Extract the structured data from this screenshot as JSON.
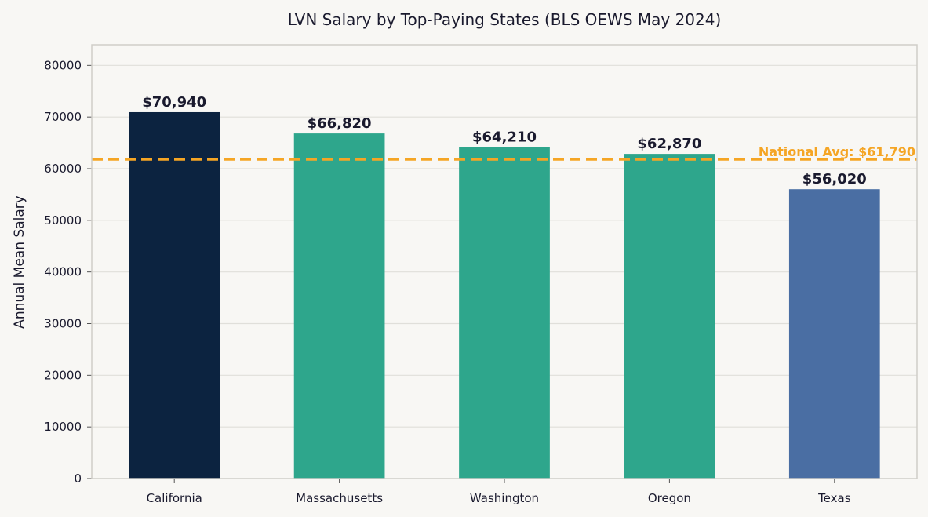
{
  "chart_data": {
    "type": "bar",
    "title": "LVN Salary by Top-Paying States (BLS OEWS May 2024)",
    "xlabel": "",
    "ylabel": "Annual Mean Salary",
    "categories": [
      "California",
      "Massachusetts",
      "Washington",
      "Oregon",
      "Texas"
    ],
    "values": [
      70940,
      66820,
      64210,
      62870,
      56020
    ],
    "value_labels": [
      "$70,940",
      "$66,820",
      "$64,210",
      "$62,870",
      "$56,020"
    ],
    "ylim": [
      0,
      84000
    ],
    "yticks": [
      0,
      10000,
      20000,
      30000,
      40000,
      50000,
      60000,
      70000,
      80000
    ],
    "ytick_labels": [
      "0",
      "10000",
      "20000",
      "30000",
      "40000",
      "50000",
      "60000",
      "70000",
      "80000"
    ],
    "grid": true,
    "bar_colors": [
      "#0c2340",
      "#2ea68c",
      "#2ea68c",
      "#2ea68c",
      "#4a6ea3"
    ],
    "reference_line": {
      "value": 61790,
      "label": "National Avg: $61,790",
      "color": "#f5a524",
      "style": "dashed"
    }
  }
}
